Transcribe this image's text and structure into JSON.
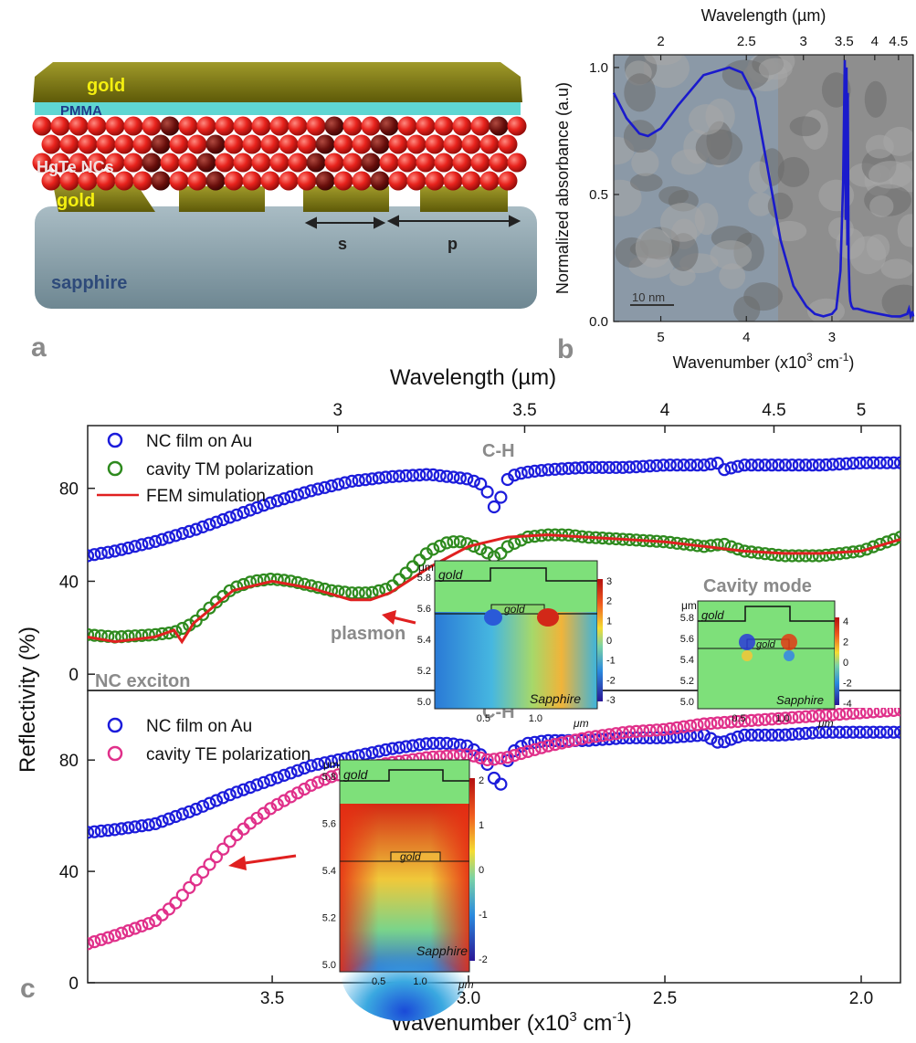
{
  "panel_a": {
    "letter": "a",
    "labels": {
      "gold_top": "gold",
      "pmma": "PMMA",
      "nc": "HgTe NCs",
      "gold_bottom": "gold",
      "sapphire": "sapphire",
      "s": "s",
      "p": "p"
    },
    "colors": {
      "gold": "#7a7a14",
      "pmma": "#5fd6d2",
      "nc": "#e8231d",
      "sapphire": "#8aa4ae",
      "label_gold": "#f4ef10"
    }
  },
  "chart_data": [
    {
      "id": "b",
      "type": "line",
      "panel_letter": "b",
      "top_xlabel": "Wavelength (µm)",
      "top_ticks": [
        "2",
        "2.5",
        "3",
        "3.5",
        "4",
        "4.5"
      ],
      "xlabel": "Wavenumber (x10³ cm⁻¹)",
      "x_ticks": [
        "5",
        "4",
        "3"
      ],
      "ylabel": "Normalized absorbance (a.u)",
      "y_ticks": [
        "0.0",
        "0.5",
        "1.0"
      ],
      "xlim": [
        5.55,
        2.05
      ],
      "ylim": [
        0,
        1.05
      ],
      "scale_bar": "10 nm",
      "line_color": "#1a1acc",
      "series": [
        {
          "x": [
            5.55,
            5.4,
            5.25,
            5.15,
            5.0,
            4.8,
            4.5,
            4.2,
            4.05,
            3.9,
            3.75,
            3.6,
            3.45,
            3.3,
            3.2,
            3.1,
            3.0,
            2.95,
            2.9,
            2.87,
            2.85,
            2.84,
            2.83,
            2.82,
            2.815,
            2.805,
            2.795,
            2.785,
            2.77,
            2.75,
            2.7,
            2.6,
            2.45,
            2.3,
            2.2,
            2.12,
            2.1,
            2.08,
            2.06,
            2.05
          ],
          "y": [
            0.9,
            0.8,
            0.74,
            0.73,
            0.76,
            0.85,
            0.97,
            1.0,
            0.98,
            0.88,
            0.6,
            0.32,
            0.14,
            0.06,
            0.03,
            0.02,
            0.03,
            0.05,
            0.2,
            0.55,
            1.03,
            0.4,
            1.0,
            0.3,
            0.9,
            0.25,
            0.12,
            0.08,
            0.06,
            0.05,
            0.05,
            0.04,
            0.03,
            0.02,
            0.02,
            0.03,
            0.05,
            0.02,
            0.04,
            0.02
          ]
        }
      ]
    },
    {
      "id": "c-top",
      "type": "scatter",
      "panel_letter": "c",
      "top_xlabel": "Wavelength (µm)",
      "top_ticks": [
        "3",
        "3.5",
        "4",
        "4.5",
        "5"
      ],
      "ylabel": "Reflectivity (%)",
      "y_ticks": [
        "0",
        "40",
        "80"
      ],
      "xlim": [
        3.97,
        1.9
      ],
      "ylim": [
        -7,
        107
      ],
      "annotation_ch": "C-H",
      "annotation_exciton": "NC exciton",
      "annotation_plasmon": "plasmon",
      "annotation_cavity": "Cavity mode",
      "series": [
        {
          "name": "NC film on Au",
          "color": "#1c1cdb",
          "x": [
            3.97,
            3.9,
            3.8,
            3.7,
            3.6,
            3.5,
            3.4,
            3.3,
            3.2,
            3.1,
            3.05,
            3.0,
            2.97,
            2.95,
            2.94,
            2.93,
            2.92,
            2.91,
            2.9,
            2.88,
            2.85,
            2.8,
            2.7,
            2.6,
            2.5,
            2.4,
            2.36,
            2.35,
            2.3,
            2.2,
            2.1,
            2.0,
            1.9
          ],
          "y": [
            51,
            53,
            57,
            62,
            68,
            74,
            79,
            83,
            85,
            86,
            85,
            84,
            82,
            78,
            75,
            69,
            75,
            80,
            84,
            86,
            87,
            88,
            89,
            89,
            90,
            90,
            91,
            88,
            90,
            90,
            90,
            91,
            91
          ]
        },
        {
          "name": "cavity TM polarization",
          "color": "#2e8a1e",
          "x": [
            3.97,
            3.9,
            3.8,
            3.75,
            3.7,
            3.65,
            3.6,
            3.55,
            3.5,
            3.45,
            3.4,
            3.35,
            3.3,
            3.25,
            3.2,
            3.15,
            3.1,
            3.05,
            3.02,
            3.0,
            2.97,
            2.95,
            2.93,
            2.9,
            2.85,
            2.8,
            2.75,
            2.7,
            2.6,
            2.5,
            2.4,
            2.35,
            2.3,
            2.2,
            2.1,
            2.0,
            1.9
          ],
          "y": [
            17,
            16,
            17,
            18,
            22,
            30,
            37,
            40,
            41,
            40,
            38,
            36,
            35,
            35,
            37,
            45,
            53,
            57,
            57,
            56,
            54,
            52,
            50,
            55,
            59,
            60,
            60,
            59,
            58,
            57,
            55,
            56,
            53,
            51,
            51,
            53,
            59
          ]
        },
        {
          "name": "FEM simulation",
          "color": "#e02020",
          "x": [
            3.97,
            3.9,
            3.8,
            3.75,
            3.73,
            3.7,
            3.6,
            3.5,
            3.4,
            3.3,
            3.25,
            3.2,
            3.1,
            3.0,
            2.9,
            2.8,
            2.7,
            2.6,
            2.5,
            2.4,
            2.3,
            2.2,
            2.1,
            2.0,
            1.9
          ],
          "y": [
            16,
            14,
            16,
            19,
            14,
            22,
            36,
            40,
            37,
            32,
            32,
            35,
            46,
            55,
            59,
            60,
            59,
            58,
            57,
            55,
            53,
            52,
            52,
            53,
            58
          ]
        }
      ]
    },
    {
      "id": "c-bottom",
      "type": "scatter",
      "xlabel": "Wavenumber (x10³ cm⁻¹)",
      "x_ticks": [
        "3.5",
        "3.0",
        "2.5",
        "2.0"
      ],
      "y_ticks": [
        "0",
        "40",
        "80"
      ],
      "xlim": [
        3.97,
        1.9
      ],
      "ylim": [
        0,
        105
      ],
      "annotation_ch": "C-H",
      "series": [
        {
          "name": "NC film on Au",
          "color": "#1c1cdb",
          "x": [
            3.97,
            3.9,
            3.8,
            3.7,
            3.6,
            3.5,
            3.4,
            3.3,
            3.2,
            3.1,
            3.05,
            3.0,
            2.97,
            2.95,
            2.93,
            2.92,
            2.91,
            2.9,
            2.88,
            2.85,
            2.8,
            2.7,
            2.6,
            2.5,
            2.4,
            2.36,
            2.3,
            2.2,
            2.1,
            2.0,
            1.9
          ],
          "y": [
            54,
            55,
            57,
            62,
            68,
            73,
            78,
            81,
            84,
            86,
            86,
            85,
            82,
            78,
            72,
            70,
            76,
            80,
            84,
            86,
            87,
            87,
            88,
            88,
            89,
            86,
            89,
            89,
            90,
            90,
            90
          ]
        },
        {
          "name": "cavity TE polarization",
          "color": "#e0308a",
          "x": [
            3.97,
            3.9,
            3.8,
            3.75,
            3.7,
            3.65,
            3.6,
            3.55,
            3.5,
            3.45,
            3.4,
            3.35,
            3.3,
            3.2,
            3.1,
            3.0,
            2.95,
            2.9,
            2.85,
            2.8,
            2.7,
            2.6,
            2.5,
            2.4,
            2.3,
            2.2,
            2.1,
            2.0,
            1.9
          ],
          "y": [
            14,
            17,
            22,
            28,
            36,
            44,
            52,
            58,
            63,
            67,
            71,
            74,
            76,
            79,
            81,
            82,
            80,
            81,
            83,
            85,
            88,
            90,
            91,
            93,
            94,
            95,
            96,
            97,
            98
          ]
        }
      ]
    }
  ],
  "insets": {
    "tm": {
      "unit": "μm",
      "y_ticks": [
        "5.8",
        "5.6",
        "5.4",
        "5.2",
        "5.0"
      ],
      "x_ticks": [
        "0.5",
        "1.0"
      ],
      "gold_top": "gold",
      "gold_bottom": "gold",
      "substrate": "Sapphire",
      "cbar": [
        "3",
        "2",
        "1",
        "0",
        "-1",
        "-2",
        "-3"
      ]
    },
    "cavity": {
      "unit": "μm",
      "y_ticks": [
        "5.8",
        "5.6",
        "5.4",
        "5.2",
        "5.0"
      ],
      "x_ticks": [
        "0.5",
        "1.0"
      ],
      "gold_top": "gold",
      "gold_bottom": "gold",
      "substrate": "Sapphire",
      "cbar": [
        "4",
        "2",
        "0",
        "-2",
        "-4"
      ]
    },
    "te": {
      "unit": "μm",
      "y_ticks": [
        "5.8",
        "5.6",
        "5.4",
        "5.2",
        "5.0"
      ],
      "x_ticks": [
        "0.5",
        "1.0"
      ],
      "gold_top": "gold",
      "gold_bottom": "gold",
      "substrate": "Sapphire",
      "cbar": [
        "2",
        "1",
        "0",
        "-1",
        "-2"
      ]
    }
  }
}
